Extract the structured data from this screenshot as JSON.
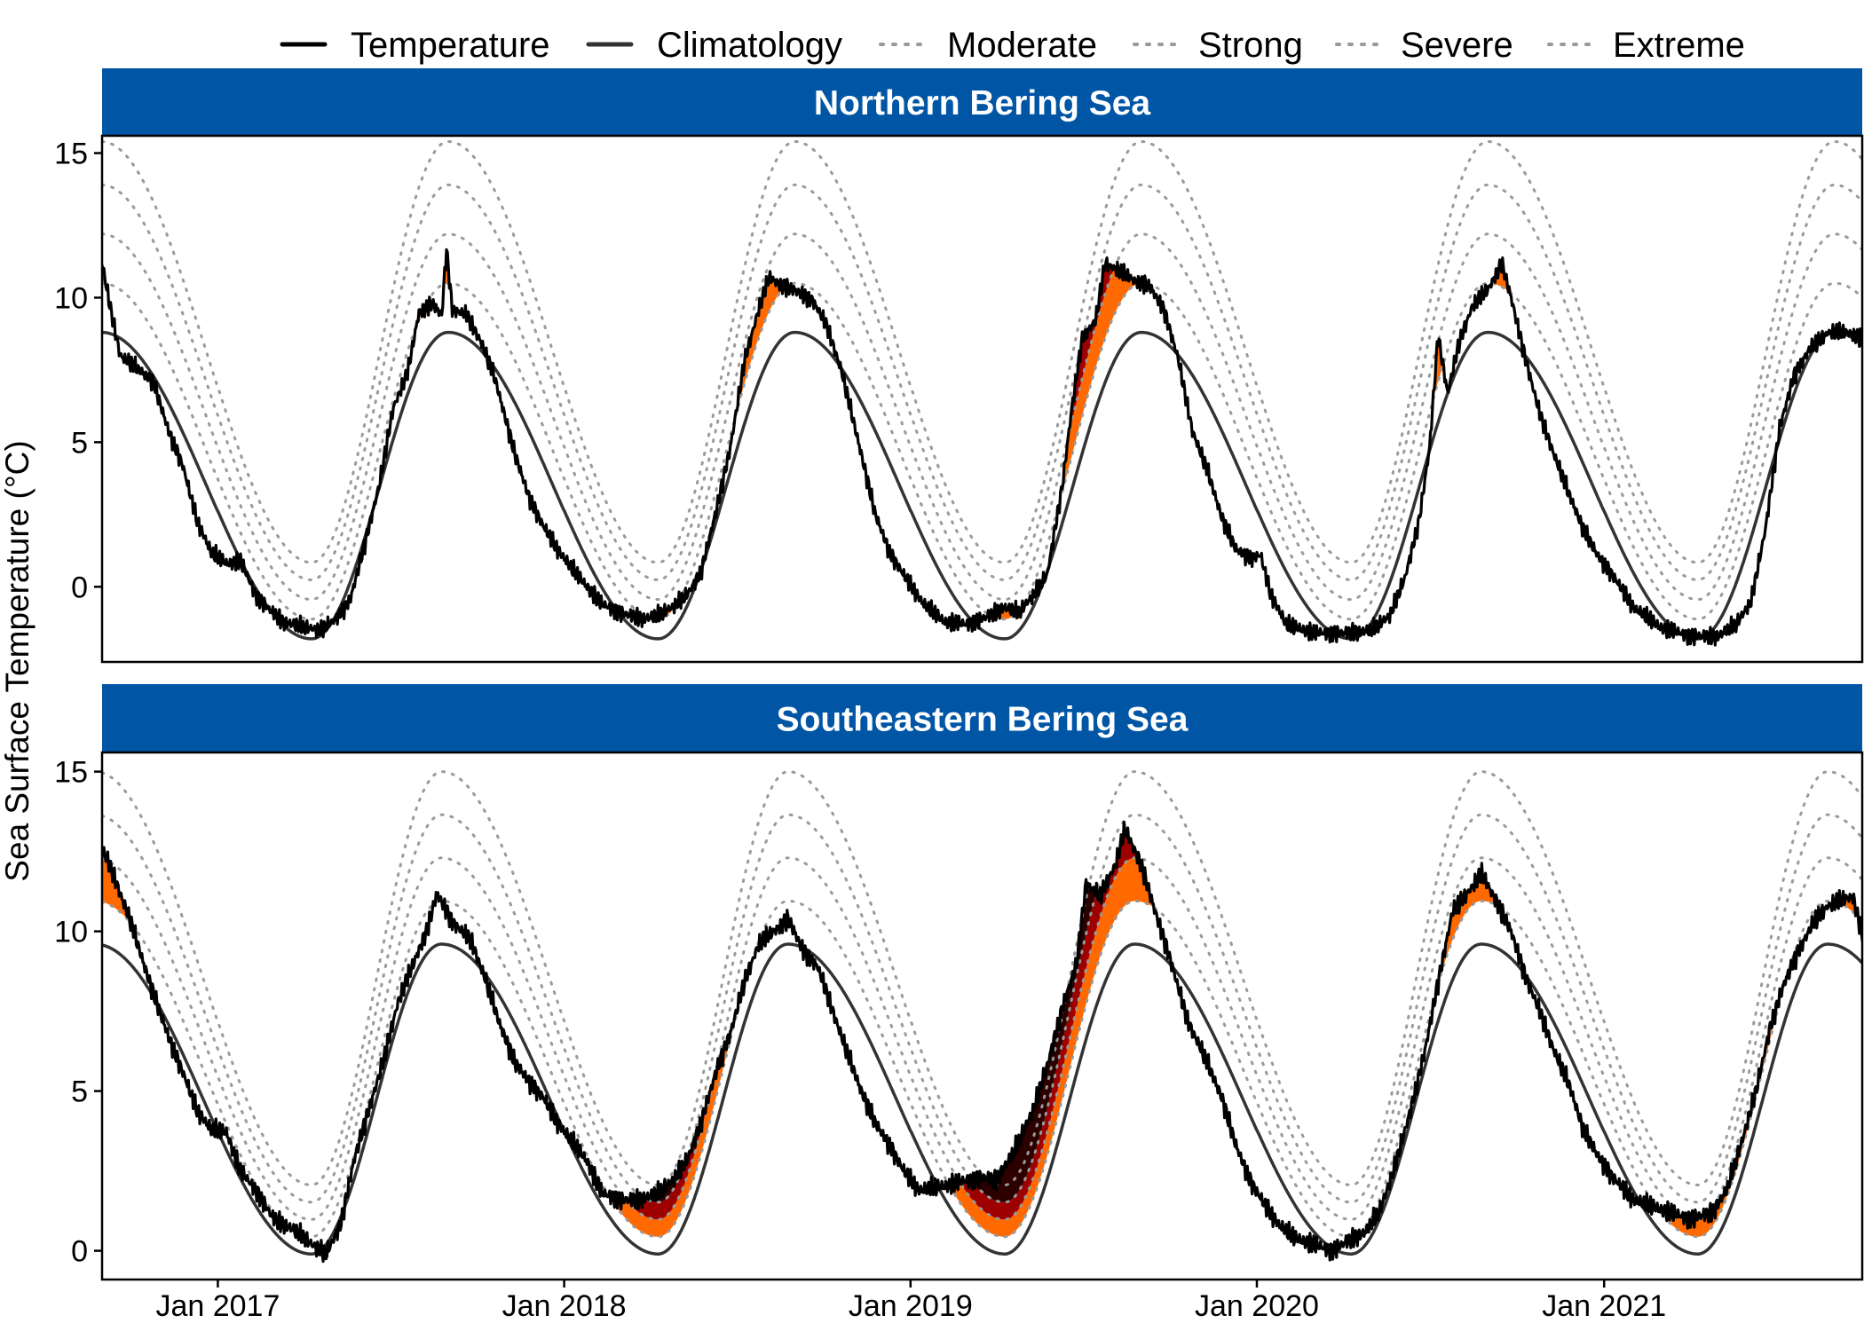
{
  "chart_data": {
    "type": "line",
    "ylabel": "Sea Surface Temperature (°C)",
    "xlabel": "",
    "x_tick_labels": [
      "Jan 2017",
      "Jan 2018",
      "Jan 2019",
      "Jan 2020",
      "Jan 2021"
    ],
    "x_ticks": [
      "2017-01-01",
      "2018-01-01",
      "2019-01-01",
      "2020-01-01",
      "2021-01-01"
    ],
    "xlim": [
      "2016-09-01",
      "2021-09-30"
    ],
    "y_tick_values": [
      0,
      5,
      10,
      15
    ],
    "y_tick_labels": [
      "0",
      "5",
      "10",
      "15"
    ],
    "legend": {
      "position": "top",
      "entries": [
        {
          "label": "Temperature",
          "style": "solid",
          "color": "#000000"
        },
        {
          "label": "Climatology",
          "style": "solid",
          "color": "#333333"
        },
        {
          "label": "Moderate",
          "style": "dotted",
          "color": "#999999"
        },
        {
          "label": "Strong",
          "style": "dotted",
          "color": "#999999"
        },
        {
          "label": "Severe",
          "style": "dotted",
          "color": "#999999"
        },
        {
          "label": "Extreme",
          "style": "dotted",
          "color": "#999999"
        }
      ]
    },
    "fill_colors": {
      "moderate": "#ffc866",
      "strong": "#ff6900",
      "severe": "#9e0000",
      "extreme": "#2d0000"
    },
    "strip_color": "#0055a5",
    "panels": [
      {
        "title": "Northern Bering Sea",
        "ylim": [
          -2.6,
          15.6
        ],
        "climatology": {
          "min": -1.8,
          "max": 8.8,
          "peak_date": "09-01",
          "trough_date": "04-10",
          "tmin_floor": -1.8
        },
        "thresholds": {
          "moderate": 1.7,
          "strong": 3.4,
          "severe": 5.1,
          "extreme": 6.6
        },
        "temperature": [
          [
            "2016-09-01",
            11.2
          ],
          [
            "2016-09-10",
            9.6
          ],
          [
            "2016-09-20",
            8.0
          ],
          [
            "2016-10-10",
            7.5
          ],
          [
            "2016-10-25",
            7.1
          ],
          [
            "2016-11-10",
            5.4
          ],
          [
            "2016-11-25",
            4.2
          ],
          [
            "2016-12-10",
            2.3
          ],
          [
            "2016-12-25",
            1.2
          ],
          [
            "2017-01-10",
            0.8
          ],
          [
            "2017-01-25",
            0.9
          ],
          [
            "2017-02-10",
            -0.3
          ],
          [
            "2017-02-25",
            -0.8
          ],
          [
            "2017-03-10",
            -1.2
          ],
          [
            "2017-04-01",
            -1.4
          ],
          [
            "2017-04-20",
            -1.5
          ],
          [
            "2017-05-05",
            -1.1
          ],
          [
            "2017-05-20",
            -0.5
          ],
          [
            "2017-06-05",
            1.5
          ],
          [
            "2017-06-20",
            3.5
          ],
          [
            "2017-07-05",
            6.2
          ],
          [
            "2017-07-20",
            7.4
          ],
          [
            "2017-08-01",
            9.5
          ],
          [
            "2017-08-15",
            9.8
          ],
          [
            "2017-08-25",
            9.4
          ],
          [
            "2017-08-30",
            11.7
          ],
          [
            "2017-09-05",
            9.6
          ],
          [
            "2017-09-20",
            9.4
          ],
          [
            "2017-10-05",
            8.5
          ],
          [
            "2017-10-20",
            7.2
          ],
          [
            "2017-11-10",
            4.6
          ],
          [
            "2017-11-25",
            3.1
          ],
          [
            "2017-12-10",
            2.1
          ],
          [
            "2017-12-25",
            1.3
          ],
          [
            "2018-01-10",
            0.6
          ],
          [
            "2018-01-25",
            0.0
          ],
          [
            "2018-02-10",
            -0.6
          ],
          [
            "2018-03-01",
            -0.9
          ],
          [
            "2018-03-25",
            -1.1
          ],
          [
            "2018-04-10",
            -1.0
          ],
          [
            "2018-04-25",
            -0.7
          ],
          [
            "2018-05-10",
            -0.3
          ],
          [
            "2018-05-25",
            0.5
          ],
          [
            "2018-06-10",
            2.6
          ],
          [
            "2018-06-25",
            4.8
          ],
          [
            "2018-07-10",
            7.8
          ],
          [
            "2018-07-25",
            9.6
          ],
          [
            "2018-08-05",
            10.7
          ],
          [
            "2018-08-20",
            10.4
          ],
          [
            "2018-09-05",
            10.2
          ],
          [
            "2018-09-20",
            9.9
          ],
          [
            "2018-10-05",
            9.0
          ],
          [
            "2018-10-20",
            7.5
          ],
          [
            "2018-11-10",
            4.6
          ],
          [
            "2018-11-25",
            2.5
          ],
          [
            "2018-12-10",
            1.2
          ],
          [
            "2018-12-25",
            0.4
          ],
          [
            "2019-01-15",
            -0.6
          ],
          [
            "2019-02-05",
            -1.2
          ],
          [
            "2019-03-01",
            -1.3
          ],
          [
            "2019-03-25",
            -1.0
          ],
          [
            "2019-04-10",
            -0.7
          ],
          [
            "2019-04-25",
            -0.9
          ],
          [
            "2019-05-10",
            -0.3
          ],
          [
            "2019-05-25",
            0.4
          ],
          [
            "2019-06-10",
            3.5
          ],
          [
            "2019-06-20",
            6.2
          ],
          [
            "2019-07-01",
            8.6
          ],
          [
            "2019-07-15",
            9.2
          ],
          [
            "2019-07-25",
            11.2
          ],
          [
            "2019-08-10",
            10.9
          ],
          [
            "2019-08-25",
            10.6
          ],
          [
            "2019-09-10",
            10.4
          ],
          [
            "2019-09-25",
            9.6
          ],
          [
            "2019-10-10",
            7.9
          ],
          [
            "2019-10-25",
            5.4
          ],
          [
            "2019-11-10",
            4.0
          ],
          [
            "2019-11-25",
            2.4
          ],
          [
            "2019-12-10",
            1.3
          ],
          [
            "2019-12-25",
            1.0
          ],
          [
            "2020-01-05",
            1.1
          ],
          [
            "2020-01-15",
            -0.2
          ],
          [
            "2020-02-01",
            -1.3
          ],
          [
            "2020-03-01",
            -1.6
          ],
          [
            "2020-04-01",
            -1.6
          ],
          [
            "2020-05-01",
            -1.5
          ],
          [
            "2020-05-20",
            -1.0
          ],
          [
            "2020-06-05",
            0.3
          ],
          [
            "2020-06-20",
            2.3
          ],
          [
            "2020-07-01",
            4.8
          ],
          [
            "2020-07-10",
            8.7
          ],
          [
            "2020-07-20",
            6.7
          ],
          [
            "2020-08-01",
            8.4
          ],
          [
            "2020-08-15",
            9.7
          ],
          [
            "2020-09-01",
            10.3
          ],
          [
            "2020-09-15",
            11.2
          ],
          [
            "2020-09-25",
            10.0
          ],
          [
            "2020-10-10",
            7.9
          ],
          [
            "2020-10-25",
            6.0
          ],
          [
            "2020-11-10",
            4.5
          ],
          [
            "2020-11-25",
            3.2
          ],
          [
            "2020-12-10",
            2.0
          ],
          [
            "2020-12-25",
            1.1
          ],
          [
            "2021-01-10",
            0.4
          ],
          [
            "2021-02-01",
            -0.7
          ],
          [
            "2021-03-01",
            -1.4
          ],
          [
            "2021-04-01",
            -1.7
          ],
          [
            "2021-05-01",
            -1.7
          ],
          [
            "2021-05-20",
            -1.3
          ],
          [
            "2021-06-05",
            -0.5
          ],
          [
            "2021-06-20",
            2.0
          ],
          [
            "2021-07-05",
            5.5
          ],
          [
            "2021-07-20",
            7.3
          ],
          [
            "2021-08-05",
            8.2
          ],
          [
            "2021-08-25",
            8.8
          ],
          [
            "2021-09-15",
            8.8
          ],
          [
            "2021-09-30",
            8.6
          ]
        ]
      },
      {
        "title": "Southeastern Bering Sea",
        "ylim": [
          -0.9,
          15.6
        ],
        "climatology": {
          "min": -0.1,
          "max": 9.6,
          "peak_date": "08-25",
          "trough_date": "04-10",
          "tmin_floor": -0.1
        },
        "thresholds": {
          "moderate": 1.35,
          "strong": 2.7,
          "severe": 4.05,
          "extreme": 5.4
        },
        "temperature": [
          [
            "2016-09-01",
            12.6
          ],
          [
            "2016-09-15",
            11.6
          ],
          [
            "2016-10-01",
            10.3
          ],
          [
            "2016-10-20",
            8.5
          ],
          [
            "2016-11-10",
            6.7
          ],
          [
            "2016-11-25",
            5.6
          ],
          [
            "2016-12-10",
            4.4
          ],
          [
            "2016-12-25",
            3.8
          ],
          [
            "2017-01-10",
            3.7
          ],
          [
            "2017-01-25",
            2.5
          ],
          [
            "2017-02-10",
            1.9
          ],
          [
            "2017-03-01",
            1.0
          ],
          [
            "2017-03-20",
            0.7
          ],
          [
            "2017-04-10",
            0.2
          ],
          [
            "2017-04-25",
            -0.1
          ],
          [
            "2017-05-10",
            0.8
          ],
          [
            "2017-05-25",
            2.9
          ],
          [
            "2017-06-10",
            4.5
          ],
          [
            "2017-06-25",
            6.0
          ],
          [
            "2017-07-10",
            7.8
          ],
          [
            "2017-07-25",
            8.9
          ],
          [
            "2017-08-10",
            10.1
          ],
          [
            "2017-08-20",
            11.2
          ],
          [
            "2017-09-05",
            10.3
          ],
          [
            "2017-09-25",
            9.7
          ],
          [
            "2017-10-10",
            8.5
          ],
          [
            "2017-10-25",
            7.1
          ],
          [
            "2017-11-10",
            5.9
          ],
          [
            "2017-11-25",
            5.3
          ],
          [
            "2017-12-10",
            4.8
          ],
          [
            "2017-12-25",
            4.0
          ],
          [
            "2018-01-10",
            3.4
          ],
          [
            "2018-01-25",
            2.8
          ],
          [
            "2018-02-10",
            1.8
          ],
          [
            "2018-03-01",
            1.6
          ],
          [
            "2018-03-20",
            1.6
          ],
          [
            "2018-04-10",
            1.8
          ],
          [
            "2018-04-25",
            2.2
          ],
          [
            "2018-05-10",
            2.8
          ],
          [
            "2018-05-25",
            4.0
          ],
          [
            "2018-06-10",
            5.6
          ],
          [
            "2018-06-25",
            6.8
          ],
          [
            "2018-07-10",
            8.4
          ],
          [
            "2018-07-25",
            9.6
          ],
          [
            "2018-08-10",
            10.0
          ],
          [
            "2018-08-25",
            10.4
          ],
          [
            "2018-09-10",
            9.4
          ],
          [
            "2018-09-25",
            8.9
          ],
          [
            "2018-10-10",
            7.6
          ],
          [
            "2018-10-25",
            6.3
          ],
          [
            "2018-11-10",
            5.0
          ],
          [
            "2018-11-25",
            4.0
          ],
          [
            "2018-12-10",
            3.3
          ],
          [
            "2018-12-25",
            2.5
          ],
          [
            "2019-01-10",
            1.9
          ],
          [
            "2019-02-01",
            2.0
          ],
          [
            "2019-03-01",
            2.2
          ],
          [
            "2019-03-20",
            2.3
          ],
          [
            "2019-04-01",
            2.2
          ],
          [
            "2019-04-20",
            3.1
          ],
          [
            "2019-05-10",
            4.4
          ],
          [
            "2019-05-25",
            5.8
          ],
          [
            "2019-06-10",
            7.6
          ],
          [
            "2019-06-25",
            9.0
          ],
          [
            "2019-07-05",
            11.5
          ],
          [
            "2019-07-20",
            11.1
          ],
          [
            "2019-08-05",
            12.1
          ],
          [
            "2019-08-15",
            13.2
          ],
          [
            "2019-09-01",
            12.1
          ],
          [
            "2019-09-15",
            10.7
          ],
          [
            "2019-10-01",
            9.2
          ],
          [
            "2019-10-20",
            7.2
          ],
          [
            "2019-11-05",
            6.2
          ],
          [
            "2019-11-25",
            4.8
          ],
          [
            "2019-12-10",
            3.3
          ],
          [
            "2019-12-25",
            2.2
          ],
          [
            "2020-01-10",
            1.4
          ],
          [
            "2020-01-25",
            0.8
          ],
          [
            "2020-02-10",
            0.4
          ],
          [
            "2020-03-01",
            0.2
          ],
          [
            "2020-03-20",
            0.0
          ],
          [
            "2020-04-05",
            0.3
          ],
          [
            "2020-04-25",
            0.6
          ],
          [
            "2020-05-10",
            1.3
          ],
          [
            "2020-05-25",
            2.6
          ],
          [
            "2020-06-10",
            4.3
          ],
          [
            "2020-06-25",
            6.1
          ],
          [
            "2020-07-10",
            8.4
          ],
          [
            "2020-07-25",
            10.6
          ],
          [
            "2020-08-10",
            11.2
          ],
          [
            "2020-08-25",
            11.8
          ],
          [
            "2020-09-10",
            10.9
          ],
          [
            "2020-09-25",
            10.0
          ],
          [
            "2020-10-10",
            8.6
          ],
          [
            "2020-10-25",
            7.5
          ],
          [
            "2020-11-10",
            6.2
          ],
          [
            "2020-11-25",
            5.2
          ],
          [
            "2020-12-10",
            3.8
          ],
          [
            "2020-12-25",
            3.0
          ],
          [
            "2021-01-10",
            2.3
          ],
          [
            "2021-02-01",
            1.6
          ],
          [
            "2021-03-01",
            1.3
          ],
          [
            "2021-04-01",
            1.0
          ],
          [
            "2021-04-25",
            1.2
          ],
          [
            "2021-05-10",
            1.9
          ],
          [
            "2021-05-25",
            3.3
          ],
          [
            "2021-06-10",
            5.0
          ],
          [
            "2021-06-25",
            7.0
          ],
          [
            "2021-07-10",
            8.4
          ],
          [
            "2021-07-25",
            9.4
          ],
          [
            "2021-08-10",
            10.3
          ],
          [
            "2021-08-25",
            10.8
          ],
          [
            "2021-09-10",
            11.0
          ],
          [
            "2021-09-20",
            11.1
          ],
          [
            "2021-09-30",
            9.9
          ]
        ]
      }
    ]
  }
}
